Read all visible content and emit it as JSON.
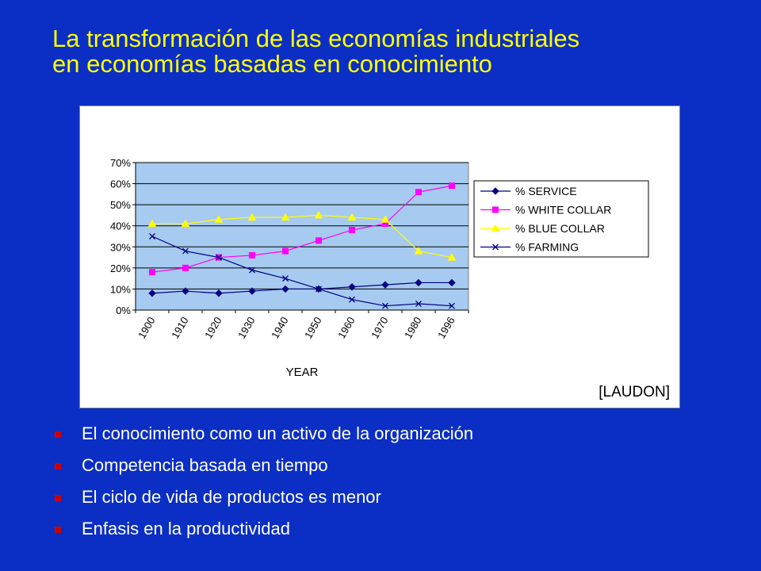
{
  "title": {
    "line1": "La transformación de las economías industriales",
    "line2": "en economías basadas en conocimiento"
  },
  "source_label": "[LAUDON]",
  "bullets": [
    "El conocimiento como un activo de la organización",
    "Competencia basada en tiempo",
    "El ciclo de vida de productos es menor",
    "Enfasis en la productividad"
  ],
  "colors": {
    "background": "#0B2FC4",
    "title": "#FFFF00",
    "bullet_marker": "#CC0000",
    "plot_area": "#A6CAF0"
  },
  "chart_data": {
    "type": "line",
    "xlabel": "YEAR",
    "ylabel": "",
    "x_tick_labels": [
      "1900",
      "1910",
      "1920",
      "1930",
      "1940",
      "1950",
      "1960",
      "1970",
      "1980",
      "1996"
    ],
    "y_tick_labels": [
      "0%",
      "10%",
      "20%",
      "30%",
      "40%",
      "50%",
      "60%",
      "70%"
    ],
    "ylim": [
      0,
      70
    ],
    "grid": "horizontal",
    "legend_position": "right",
    "series": [
      {
        "name": "% SERVICE",
        "color": "#000080",
        "marker": "diamond",
        "values": [
          8,
          9,
          8,
          9,
          10,
          10,
          11,
          12,
          13,
          13
        ]
      },
      {
        "name": "% WHITE COLLAR",
        "color": "#FF00FF",
        "marker": "square",
        "values": [
          18,
          20,
          25,
          26,
          28,
          33,
          38,
          41,
          56,
          59
        ]
      },
      {
        "name": "% BLUE COLLAR",
        "color": "#FFFF00",
        "marker": "triangle",
        "values": [
          41,
          41,
          43,
          44,
          44,
          45,
          44,
          43,
          28,
          25
        ]
      },
      {
        "name": "% FARMING",
        "color": "#000080",
        "marker": "x",
        "values": [
          35,
          28,
          25,
          19,
          15,
          10,
          5,
          2,
          3,
          2
        ]
      }
    ]
  }
}
